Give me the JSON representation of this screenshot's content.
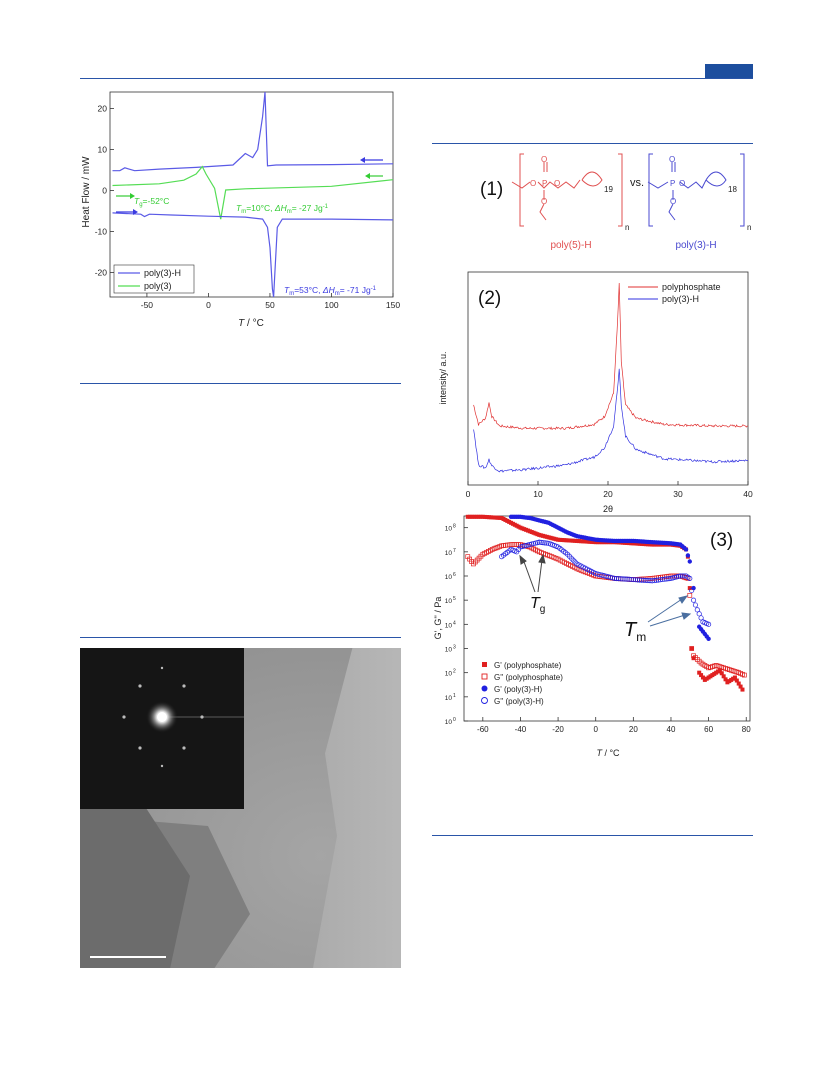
{
  "dsc": {
    "y_axis_label": "Heat Flow / mW",
    "x_axis_label_italic": "T",
    "x_axis_label_rest": " / °C",
    "x_ticks": [
      "-50",
      "0",
      "50",
      "100",
      "150"
    ],
    "y_ticks": [
      "20",
      "10",
      "0",
      "-10",
      "-20"
    ],
    "legend": [
      {
        "label": "poly(3)-H",
        "color": "#5a5ae6"
      },
      {
        "label": "poly(3)",
        "color": "#55dd55"
      }
    ],
    "annotations": {
      "tg_sym": "T",
      "tg_sub": "g",
      "tg_val": "=-52°C",
      "tm1_sym": "T",
      "tm1_sub": "m",
      "tm1_val": "=10°C, ",
      "dh1_sym": "ΔH",
      "dh1_sub": "m",
      "dh1_val": "= -27 Jg",
      "tm2_sym": "T",
      "tm2_sub": "m",
      "tm2_val": "=53°C, ",
      "dh2_sym": "ΔH",
      "dh2_sub": "m",
      "dh2_val": "= -71 Jg",
      "exp": "-1"
    }
  },
  "structures": {
    "panel_label": "(1)",
    "vs": "vs.",
    "left_subscript": "19",
    "right_subscript": "18",
    "n": "n",
    "left_name": "poly(5)-H",
    "right_name": "poly(3)-H",
    "left_color": "#e05050",
    "right_color": "#4a4ad0"
  },
  "xrd": {
    "panel_label": "(2)",
    "y_axis_label": "intensity/ a.u.",
    "x_axis_label": "2θ",
    "x_ticks": [
      "0",
      "10",
      "20",
      "30",
      "40"
    ],
    "legend": [
      {
        "label": "polyphosphate",
        "color": "#e03030"
      },
      {
        "label": "poly(3)-H",
        "color": "#3030e0"
      }
    ]
  },
  "rheology": {
    "panel_label": "(3)",
    "y_axis_label": "G', G'' / Pa",
    "x_axis_label_italic": "T",
    "x_axis_label_rest": " / °C",
    "x_ticks": [
      "-60",
      "-40",
      "-20",
      "0",
      "20",
      "40",
      "60",
      "80"
    ],
    "y_tick_base": "10",
    "y_tick_exps": [
      "8",
      "7",
      "6",
      "5",
      "4",
      "3",
      "2",
      "1",
      "0"
    ],
    "tg_sym": "T",
    "tg_sub": "g",
    "tm_sym": "T",
    "tm_sub": "m",
    "legend": [
      {
        "label": "G' (polyphosphate)",
        "color": "#e02020",
        "filled": true,
        "shape": "square"
      },
      {
        "label": "G'' (polyphosphate)",
        "color": "#e02020",
        "filled": false,
        "shape": "square"
      },
      {
        "label": "G' (poly(3)-H)",
        "color": "#2020e0",
        "filled": true,
        "shape": "circle"
      },
      {
        "label": "G'' (poly(3)-H)",
        "color": "#2020e0",
        "filled": false,
        "shape": "circle"
      }
    ]
  },
  "chart_data": [
    {
      "type": "line",
      "xlabel": "T / °C",
      "ylabel": "Heat Flow / mW",
      "xlim": [
        -80,
        150
      ],
      "ylim": [
        -26,
        24
      ],
      "series": [
        {
          "name": "poly(3)-H",
          "x": [
            -78,
            -72,
            -68,
            -60,
            -40,
            -10,
            20,
            30,
            36,
            40,
            44,
            46,
            48,
            55,
            100,
            150
          ],
          "y": [
            4.8,
            4.8,
            5.5,
            4.8,
            5.2,
            5.6,
            6.2,
            9,
            8,
            10,
            18,
            24,
            6,
            6.2,
            6.3,
            6.5
          ]
        },
        {
          "name": "poly(3)",
          "x": [
            -78,
            -40,
            -20,
            -10,
            -5,
            -2,
            5,
            10,
            14,
            30,
            100,
            150
          ],
          "y": [
            1.2,
            1.6,
            2.5,
            4,
            5.8,
            4,
            0.5,
            -7,
            0.1,
            0.4,
            1,
            2.6
          ]
        },
        {
          "name": "poly(3)-H",
          "x": [
            -78,
            -55,
            -52,
            -48,
            -30,
            0,
            30,
            44,
            48,
            50,
            52,
            53,
            54,
            56,
            60,
            100,
            150
          ],
          "y": [
            -5.5,
            -5.8,
            -6.4,
            -5.8,
            -6,
            -6.3,
            -6.5,
            -7,
            -9,
            -14,
            -24,
            -26,
            -20,
            -9,
            -7,
            -7,
            -7.2
          ]
        }
      ]
    },
    {
      "type": "line",
      "xlabel": "2θ",
      "ylabel": "intensity/ a.u.",
      "xlim": [
        0,
        40
      ],
      "series": [
        {
          "name": "polyphosphate",
          "x": [
            0.8,
            1.5,
            2.5,
            3.0,
            3.4,
            4.5,
            8,
            14,
            18,
            19.5,
            20.8,
            21.3,
            21.6,
            21.9,
            22.5,
            24,
            28,
            35,
            40
          ],
          "y": [
            95,
            70,
            78,
            98,
            80,
            68,
            65,
            65,
            70,
            80,
            110,
            190,
            250,
            150,
            95,
            78,
            70,
            68,
            68
          ]
        },
        {
          "name": "poly(3)-H",
          "x": [
            0.8,
            1.5,
            2.5,
            3.0,
            3.4,
            4.5,
            8,
            14,
            18,
            19.5,
            20.8,
            21.3,
            21.6,
            21.9,
            22.5,
            24,
            28,
            35,
            40
          ],
          "y": [
            65,
            18,
            14,
            25,
            17,
            10,
            12,
            18,
            28,
            40,
            68,
            110,
            140,
            95,
            55,
            38,
            26,
            22,
            24
          ]
        }
      ]
    },
    {
      "type": "scatter",
      "xlabel": "T / °C",
      "ylabel": "G', G'' / Pa",
      "xlim": [
        -70,
        82
      ],
      "ylim_log10": [
        0,
        8.4
      ],
      "series": [
        {
          "name": "G' (polyphosphate)",
          "x": [
            -68,
            -60,
            -50,
            -45,
            -40,
            -35,
            -30,
            -25,
            -20,
            -10,
            0,
            10,
            20,
            30,
            40,
            45,
            48,
            49,
            50,
            51,
            52,
            55,
            58,
            62,
            66,
            70,
            74,
            78
          ],
          "log10_y": [
            8.45,
            8.45,
            8.4,
            8.2,
            8.0,
            7.85,
            7.7,
            7.6,
            7.5,
            7.45,
            7.4,
            7.4,
            7.35,
            7.3,
            7.3,
            7.25,
            7.1,
            6.8,
            5.5,
            3.0,
            2.6,
            2.0,
            1.7,
            1.9,
            2.1,
            1.6,
            1.8,
            1.3
          ]
        },
        {
          "name": "G'' (polyphosphate)",
          "x": [
            -68,
            -65,
            -60,
            -55,
            -50,
            -45,
            -40,
            -35,
            -30,
            -20,
            -10,
            0,
            10,
            20,
            30,
            40,
            45,
            49,
            50,
            51,
            52,
            56,
            60,
            64,
            68,
            72,
            76,
            79
          ],
          "log10_y": [
            6.8,
            6.5,
            6.9,
            7.1,
            7.25,
            7.3,
            7.3,
            7.2,
            7.0,
            6.7,
            6.3,
            6.0,
            5.9,
            5.85,
            5.9,
            6.0,
            6.0,
            5.9,
            5.2,
            3.0,
            2.7,
            2.4,
            2.2,
            2.3,
            2.2,
            2.1,
            2.0,
            1.9
          ]
        },
        {
          "name": "G' (poly(3)-H)",
          "x": [
            -45,
            -40,
            -35,
            -30,
            -25,
            -20,
            -15,
            -10,
            0,
            10,
            20,
            30,
            40,
            45,
            48,
            50,
            52,
            55,
            58,
            60
          ],
          "log10_y": [
            8.45,
            8.45,
            8.4,
            8.3,
            8.2,
            8.0,
            7.8,
            7.65,
            7.5,
            7.45,
            7.45,
            7.4,
            7.35,
            7.3,
            7.1,
            6.6,
            5.5,
            3.9,
            3.6,
            3.4
          ]
        },
        {
          "name": "G'' (poly(3)-H)",
          "x": [
            -50,
            -45,
            -42,
            -40,
            -35,
            -30,
            -25,
            -20,
            -15,
            -10,
            0,
            10,
            20,
            30,
            40,
            45,
            48,
            50,
            51,
            52,
            54,
            57,
            60
          ],
          "log10_y": [
            6.8,
            7.1,
            7.0,
            7.2,
            7.3,
            7.4,
            7.35,
            7.2,
            6.9,
            6.5,
            6.1,
            5.9,
            5.85,
            5.8,
            5.9,
            6.0,
            6.0,
            5.9,
            5.4,
            5.0,
            4.6,
            4.1,
            4.0
          ]
        }
      ]
    }
  ]
}
